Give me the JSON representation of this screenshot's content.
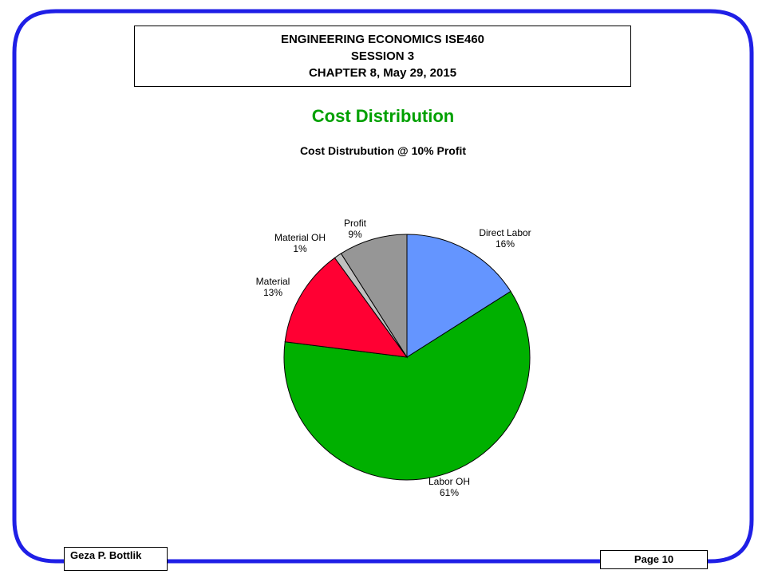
{
  "header": {
    "line1": "ENGINEERING ECONOMICS ISE460",
    "line2": "SESSION 3",
    "line3": "CHAPTER 8, May 29, 2015"
  },
  "slide_title": "Cost Distribution",
  "footer": {
    "author": "Geza P. Bottlik",
    "page": "Page 10"
  },
  "colors": {
    "border": "#1f1fe6",
    "title": "#00a000"
  },
  "chart_data": {
    "type": "pie",
    "title": "Cost Distrubution @ 10% Profit",
    "start_angle_deg": 0,
    "direction": "clockwise",
    "legend": "none",
    "slices": [
      {
        "name": "Direct Labor",
        "value": 16,
        "label": "16%",
        "color": "#6495ff"
      },
      {
        "name": "Labor OH",
        "value": 61,
        "label": "61%",
        "color": "#00b000"
      },
      {
        "name": "Material",
        "value": 13,
        "label": "13%",
        "color": "#ff0033"
      },
      {
        "name": "Material OH",
        "value": 1,
        "label": "1%",
        "color": "#c0c0c0"
      },
      {
        "name": "Profit",
        "value": 9,
        "label": "9%",
        "color": "#969696"
      }
    ]
  }
}
